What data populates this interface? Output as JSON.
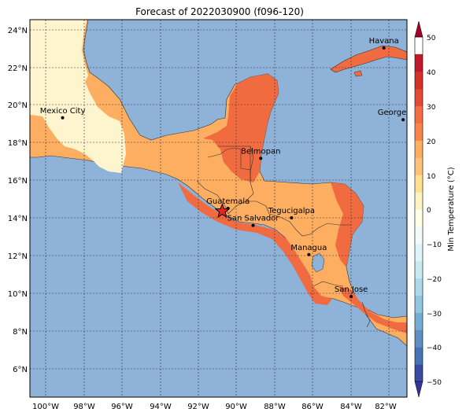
{
  "title": "Forecast of 2022030900 (f096-120)",
  "lat_ticks": [
    "24°N",
    "22°N",
    "20°N",
    "18°N",
    "16°N",
    "14°N",
    "12°N",
    "10°N",
    "8°N",
    "6°N"
  ],
  "lon_ticks": [
    "100°W",
    "98°W",
    "96°W",
    "94°W",
    "92°W",
    "90°W",
    "88°W",
    "86°W",
    "84°W",
    "82°W"
  ],
  "map_extent": {
    "lon": [
      -100.8,
      -81.2
    ],
    "lat": [
      4.6,
      24.6
    ]
  },
  "colorbar": {
    "label": "Min Temperature (°C)",
    "ticks": [
      "50",
      "40",
      "30",
      "20",
      "10",
      "0",
      "−10",
      "−20",
      "−30",
      "−40",
      "−50"
    ],
    "levels": [
      -50,
      -45,
      -40,
      -35,
      -30,
      -25,
      -20,
      -15,
      -10,
      -5,
      0,
      5,
      10,
      15,
      20,
      25,
      30,
      35,
      40,
      45,
      50
    ],
    "colors": [
      "#313695",
      "#394ca1",
      "#4575b4",
      "#5f8fc2",
      "#74add1",
      "#92c5de",
      "#abd9e9",
      "#c8e9f1",
      "#e0f3f8",
      "#f2fafc",
      "#ffffe5",
      "#fff3c4",
      "#fee090",
      "#fdc27a",
      "#fdae61",
      "#f8844a",
      "#f46d43",
      "#e34933",
      "#d73027",
      "#bf1a28",
      "#a50026"
    ],
    "extend": "both"
  },
  "colors": {
    "ocean": "#8fb2d8",
    "warm_10_15": "#fef5cf",
    "warm_20_25": "#fdae61",
    "warm_25_30": "#f06b40",
    "border": "#333333"
  },
  "cities": [
    {
      "name": "Havana",
      "lon": -82.4,
      "lat": 23.1
    },
    {
      "name": "Mexico City",
      "lon": -99.1,
      "lat": 19.4
    },
    {
      "name": "George Town",
      "lon": -81.4,
      "lat": 19.3
    },
    {
      "name": "Belmopan",
      "lon": -88.8,
      "lat": 17.25
    },
    {
      "name": "Guatemala",
      "lon": -90.5,
      "lat": 14.6
    },
    {
      "name": "Tegucigalpa",
      "lon": -87.2,
      "lat": 14.1
    },
    {
      "name": "San Salvador",
      "lon": -89.2,
      "lat": 13.7
    },
    {
      "name": "Managua",
      "lon": -86.3,
      "lat": 12.15
    },
    {
      "name": "San Jose",
      "lon": -84.1,
      "lat": 9.93
    }
  ],
  "marker": {
    "symbol": "star",
    "lon": -90.8,
    "lat": 14.45
  }
}
